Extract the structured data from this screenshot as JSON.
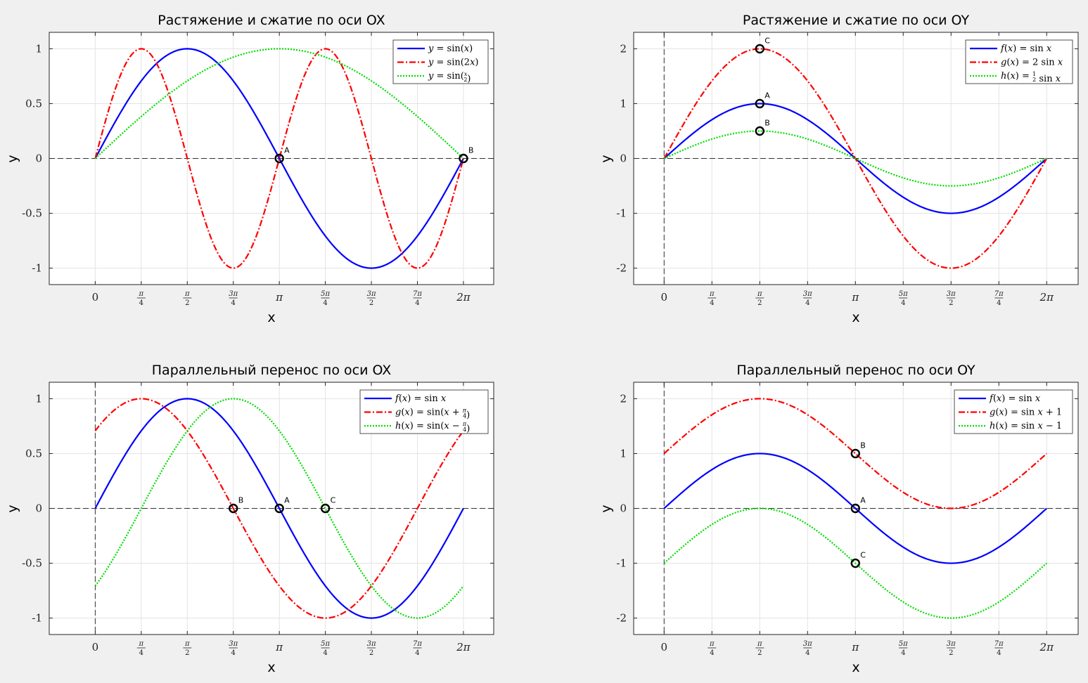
{
  "figure": {
    "background": "#f0f0f0",
    "x_tick_labels": [
      {
        "num": "0"
      },
      {
        "num": "π",
        "den": "4"
      },
      {
        "num": "π",
        "den": "2"
      },
      {
        "num": "3π",
        "den": "4"
      },
      {
        "num": "π"
      },
      {
        "num": "5π",
        "den": "4"
      },
      {
        "num": "3π",
        "den": "2"
      },
      {
        "num": "7π",
        "den": "4"
      },
      {
        "num": "2π"
      }
    ]
  },
  "chart_data": [
    {
      "type": "line",
      "title": "Растяжение и сжатие по оси OX",
      "xlabel": "x",
      "ylabel": "y",
      "xlim": [
        -0.785,
        6.8
      ],
      "ylim": [
        -1.15,
        1.15
      ],
      "xticks": [
        0,
        0.785398,
        1.570796,
        2.356194,
        3.141593,
        3.926991,
        4.712389,
        5.497787,
        6.283185
      ],
      "yticks": [
        -1,
        -0.5,
        0,
        0.5,
        1
      ],
      "ytick_labels": [
        "-1",
        "-0.5",
        "0",
        "0.5",
        "1"
      ],
      "grid": true,
      "legend_position": "top-right",
      "series": [
        {
          "name": "y = sin(x)",
          "function": "sin(x)",
          "x_range": [
            0,
            6.283185
          ],
          "color": "#0000ff",
          "style": "solid"
        },
        {
          "name": "y = sin(2x)",
          "function": "sin(2x)",
          "x_range": [
            0,
            6.283185
          ],
          "color": "#ff0000",
          "style": "dashdot"
        },
        {
          "name": "y = sin(x/2)",
          "function": "sin(x/2)",
          "x_range": [
            0,
            6.283185
          ],
          "color": "#00dd00",
          "style": "dotted"
        }
      ],
      "annotations": [
        {
          "label": "A",
          "x": 3.141593,
          "y": 0
        },
        {
          "label": "B",
          "x": 6.283185,
          "y": 0
        }
      ],
      "reference_lines": {
        "horizontal_zero": true,
        "vertical_zero": false
      }
    },
    {
      "type": "line",
      "title": "Растяжение и сжатие по оси OY",
      "xlabel": "x",
      "ylabel": "y",
      "xlim": [
        -0.5,
        6.8
      ],
      "ylim": [
        -2.3,
        2.3
      ],
      "xticks": [
        0,
        0.785398,
        1.570796,
        2.356194,
        3.141593,
        3.926991,
        4.712389,
        5.497787,
        6.283185
      ],
      "yticks": [
        -2,
        -1,
        0,
        1,
        2
      ],
      "ytick_labels": [
        "-2",
        "-1",
        "0",
        "1",
        "2"
      ],
      "grid": true,
      "legend_position": "top-right",
      "series": [
        {
          "name": "f(x) = sin x",
          "function": "sin(x)",
          "x_range": [
            0,
            6.283185
          ],
          "color": "#0000ff",
          "style": "solid"
        },
        {
          "name": "g(x) = 2 sin x",
          "function": "2sin(x)",
          "x_range": [
            0,
            6.283185
          ],
          "color": "#ff0000",
          "style": "dashdot"
        },
        {
          "name": "h(x) = ½ sin x",
          "function": "0.5sin(x)",
          "x_range": [
            0,
            6.283185
          ],
          "color": "#00dd00",
          "style": "dotted"
        }
      ],
      "annotations": [
        {
          "label": "C",
          "x": 1.570796,
          "y": 2
        },
        {
          "label": "A",
          "x": 1.570796,
          "y": 1
        },
        {
          "label": "B",
          "x": 1.570796,
          "y": 0.5
        }
      ],
      "reference_lines": {
        "horizontal_zero": true,
        "vertical_zero": true
      }
    },
    {
      "type": "line",
      "title": "Параллельный перенос по оси OX",
      "xlabel": "x",
      "ylabel": "y",
      "xlim": [
        -0.785,
        6.8
      ],
      "ylim": [
        -1.15,
        1.15
      ],
      "xticks": [
        0,
        0.785398,
        1.570796,
        2.356194,
        3.141593,
        3.926991,
        4.712389,
        5.497787,
        6.283185
      ],
      "yticks": [
        -1,
        -0.5,
        0,
        0.5,
        1
      ],
      "ytick_labels": [
        "-1",
        "-0.5",
        "0",
        "0.5",
        "1"
      ],
      "grid": true,
      "legend_position": "top-right",
      "series": [
        {
          "name": "f(x) = sin x",
          "function": "sin(x)",
          "x_range": [
            0,
            6.283185
          ],
          "color": "#0000ff",
          "style": "solid"
        },
        {
          "name": "g(x) = sin(x + π/4)",
          "function": "sin(x+π/4)",
          "x_range": [
            0,
            6.283185
          ],
          "color": "#ff0000",
          "style": "dashdot"
        },
        {
          "name": "h(x) = sin(x − π/4)",
          "function": "sin(x-π/4)",
          "x_range": [
            0,
            6.283185
          ],
          "color": "#00dd00",
          "style": "dotted"
        }
      ],
      "annotations": [
        {
          "label": "B",
          "x": 2.356194,
          "y": 0
        },
        {
          "label": "A",
          "x": 3.141593,
          "y": 0
        },
        {
          "label": "C",
          "x": 3.926991,
          "y": 0
        }
      ],
      "reference_lines": {
        "horizontal_zero": true,
        "vertical_zero": true
      }
    },
    {
      "type": "line",
      "title": "Параллельный перенос по оси OY",
      "xlabel": "x",
      "ylabel": "y",
      "xlim": [
        -0.5,
        6.8
      ],
      "ylim": [
        -2.3,
        2.3
      ],
      "xticks": [
        0,
        0.785398,
        1.570796,
        2.356194,
        3.141593,
        3.926991,
        4.712389,
        5.497787,
        6.283185
      ],
      "yticks": [
        -2,
        -1,
        0,
        1,
        2
      ],
      "ytick_labels": [
        "-2",
        "-1",
        "0",
        "1",
        "2"
      ],
      "grid": true,
      "legend_position": "top-right",
      "series": [
        {
          "name": "f(x) = sin x",
          "function": "sin(x)",
          "x_range": [
            0,
            6.283185
          ],
          "color": "#0000ff",
          "style": "solid"
        },
        {
          "name": "g(x) = sin x + 1",
          "function": "sin(x)+1",
          "x_range": [
            0,
            6.283185
          ],
          "color": "#ff0000",
          "style": "dashdot"
        },
        {
          "name": "h(x) = sin x − 1",
          "function": "sin(x)-1",
          "x_range": [
            0,
            6.283185
          ],
          "color": "#00dd00",
          "style": "dotted"
        }
      ],
      "annotations": [
        {
          "label": "B",
          "x": 3.141593,
          "y": 1
        },
        {
          "label": "A",
          "x": 3.141593,
          "y": 0
        },
        {
          "label": "C",
          "x": 3.141593,
          "y": -1
        }
      ],
      "reference_lines": {
        "horizontal_zero": true,
        "vertical_zero": true
      }
    }
  ]
}
